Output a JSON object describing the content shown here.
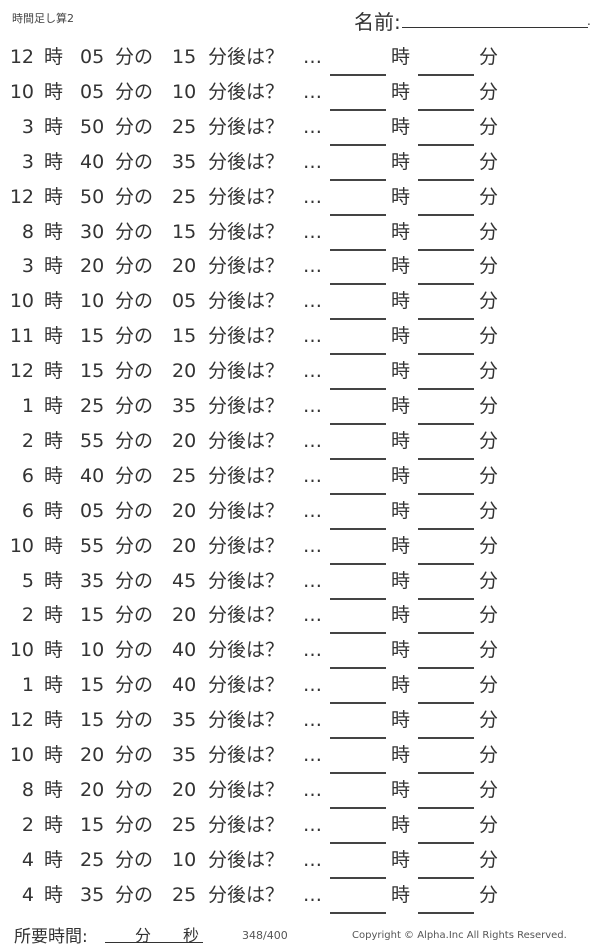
{
  "header": {
    "title": "時間足し算2",
    "name_label": "名前:",
    "name_end": "."
  },
  "labels": {
    "hour": "時",
    "minute_of": "分の",
    "after": "分後は？",
    "dots": "…",
    "ans_hour": "時",
    "ans_minute": "分"
  },
  "problems": [
    {
      "h": "12",
      "m": "05",
      "add": "15"
    },
    {
      "h": "10",
      "m": "05",
      "add": "10"
    },
    {
      "h": "3",
      "m": "50",
      "add": "25"
    },
    {
      "h": "3",
      "m": "40",
      "add": "35"
    },
    {
      "h": "12",
      "m": "50",
      "add": "25"
    },
    {
      "h": "8",
      "m": "30",
      "add": "15"
    },
    {
      "h": "3",
      "m": "20",
      "add": "20"
    },
    {
      "h": "10",
      "m": "10",
      "add": "05"
    },
    {
      "h": "11",
      "m": "15",
      "add": "15"
    },
    {
      "h": "12",
      "m": "15",
      "add": "20"
    },
    {
      "h": "1",
      "m": "25",
      "add": "35"
    },
    {
      "h": "2",
      "m": "55",
      "add": "20"
    },
    {
      "h": "6",
      "m": "40",
      "add": "25"
    },
    {
      "h": "6",
      "m": "05",
      "add": "20"
    },
    {
      "h": "10",
      "m": "55",
      "add": "20"
    },
    {
      "h": "5",
      "m": "35",
      "add": "45"
    },
    {
      "h": "2",
      "m": "15",
      "add": "20"
    },
    {
      "h": "10",
      "m": "10",
      "add": "40"
    },
    {
      "h": "1",
      "m": "15",
      "add": "40"
    },
    {
      "h": "12",
      "m": "15",
      "add": "35"
    },
    {
      "h": "10",
      "m": "20",
      "add": "35"
    },
    {
      "h": "8",
      "m": "20",
      "add": "20"
    },
    {
      "h": "2",
      "m": "15",
      "add": "25"
    },
    {
      "h": "4",
      "m": "25",
      "add": "10"
    },
    {
      "h": "4",
      "m": "35",
      "add": "25"
    }
  ],
  "footer": {
    "time_label": "所要時間:",
    "minutes": "分",
    "seconds": "秒",
    "page": "348/400",
    "copyright": "Copyright ©  Alpha.Inc All Rights Reserved."
  }
}
